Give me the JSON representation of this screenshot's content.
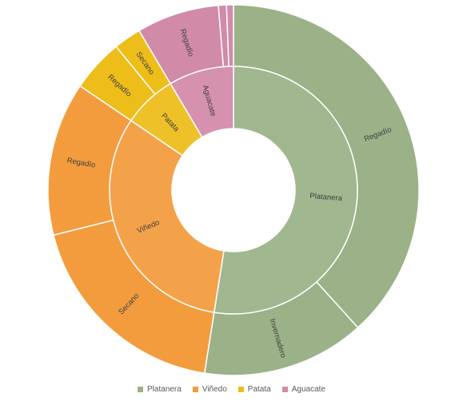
{
  "chart_data": {
    "type": "sunburst",
    "colors": {
      "Platanera": "#9bb288",
      "Viñedo": "#f39c3e",
      "Patata": "#edbd1a",
      "Aguacate": "#d28aa9"
    },
    "legend": {
      "placement": "bottom",
      "entries": [
        "Platanera",
        "Viñedo",
        "Patata",
        "Aguacate"
      ]
    },
    "inner": [
      {
        "name": "Platanera",
        "value": 52.5,
        "label": "Platanera"
      },
      {
        "name": "Viñedo",
        "value": 32.0,
        "label": "Viñedo"
      },
      {
        "name": "Patata",
        "value": 7.0,
        "label": "Patata"
      },
      {
        "name": "Aguacate",
        "value": 8.5,
        "label": "Aguacate"
      }
    ],
    "outer": [
      {
        "parent": "Platanera",
        "label": "Regadío",
        "value": 38.3
      },
      {
        "parent": "Platanera",
        "label": "Invernadero",
        "value": 14.2
      },
      {
        "parent": "Viñedo",
        "label": "Secano",
        "value": 18.6
      },
      {
        "parent": "Viñedo",
        "label": "Regadío",
        "value": 13.4
      },
      {
        "parent": "Patata",
        "label": "Regadío",
        "value": 4.6
      },
      {
        "parent": "Patata",
        "label": "Secano",
        "value": 2.4
      },
      {
        "parent": "Aguacate",
        "label": "Regadío",
        "value": 7.2
      },
      {
        "parent": "Aguacate",
        "label": "",
        "value": 0.7
      },
      {
        "parent": "Aguacate",
        "label": "",
        "value": 0.6
      }
    ]
  }
}
